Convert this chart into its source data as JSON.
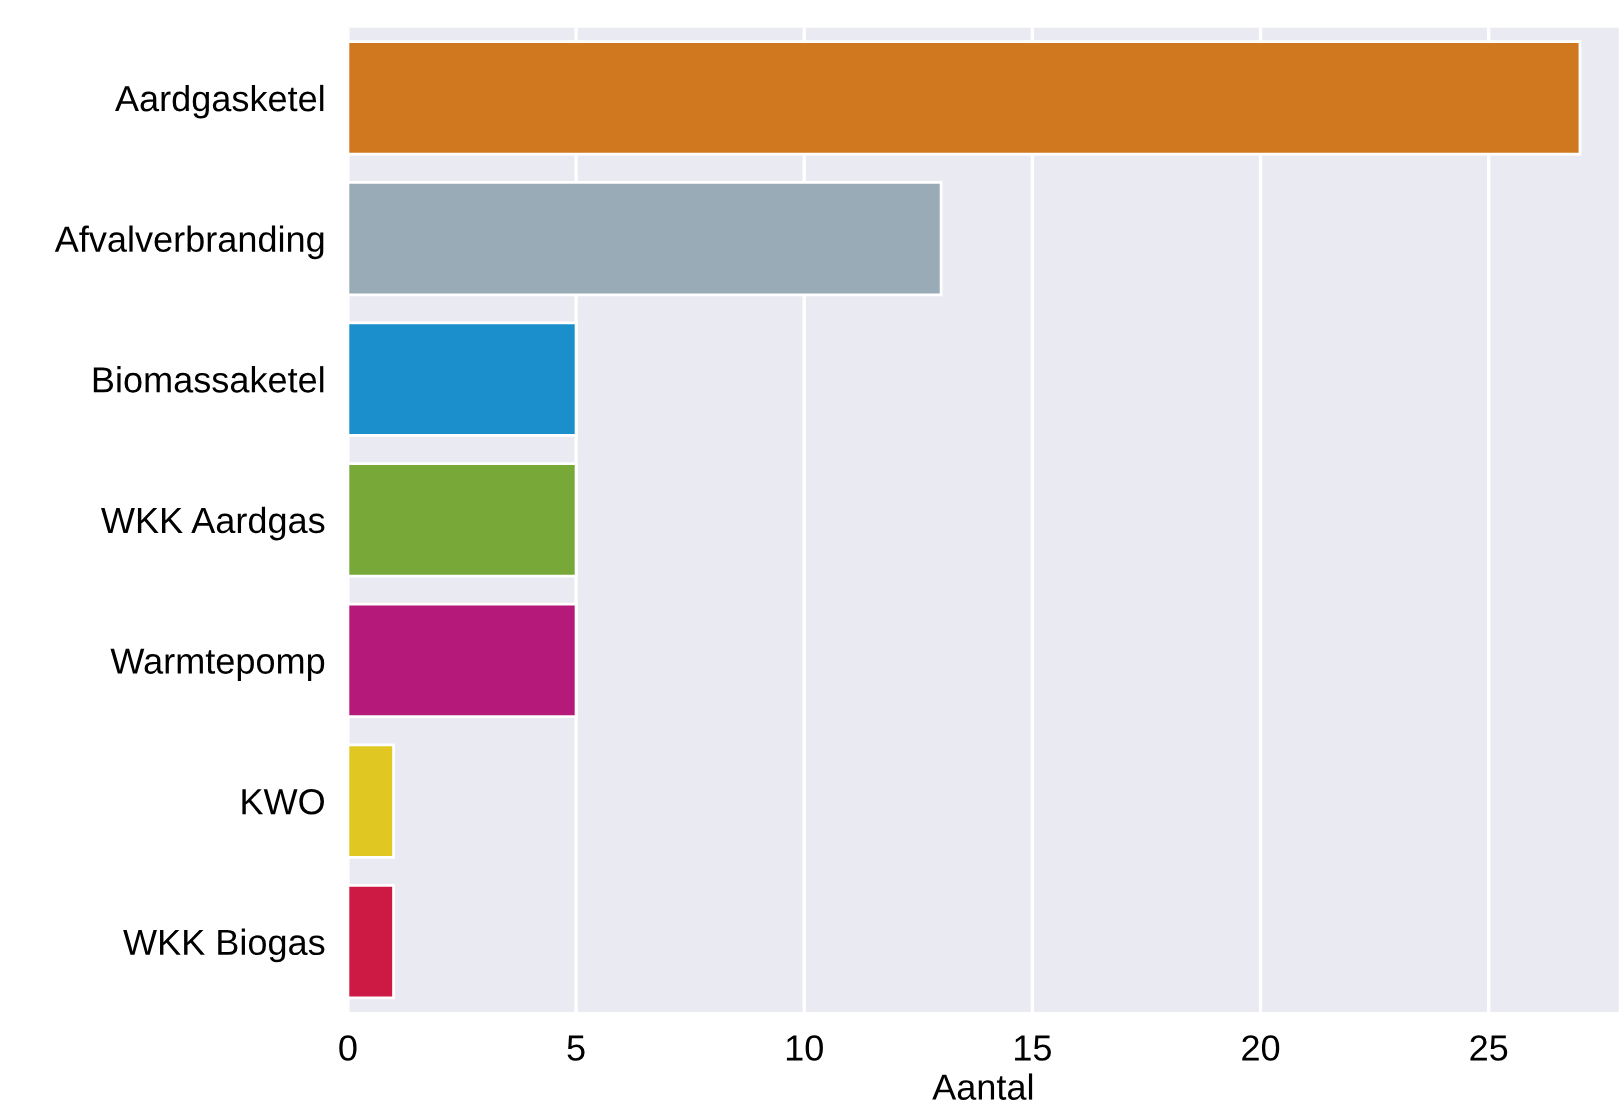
{
  "chart_data": {
    "type": "bar",
    "orientation": "horizontal",
    "xlabel": "Aantal",
    "categories": [
      "Aardgasketel",
      "Afvalverbranding",
      "Biomassaketel",
      "WKK Aardgas",
      "Warmtepomp",
      "KWO",
      "WKK Biogas"
    ],
    "values": [
      27,
      13,
      5,
      5,
      5,
      1,
      1
    ],
    "colors": [
      "#d07820",
      "#9aabb8",
      "#1a8fcb",
      "#77a838",
      "#b5197a",
      "#e0c722",
      "#cc1a45"
    ],
    "xlim": [
      0,
      27.85
    ],
    "xticks": [
      0,
      5,
      10,
      15,
      20,
      25
    ],
    "grid": "x",
    "legend": false
  }
}
